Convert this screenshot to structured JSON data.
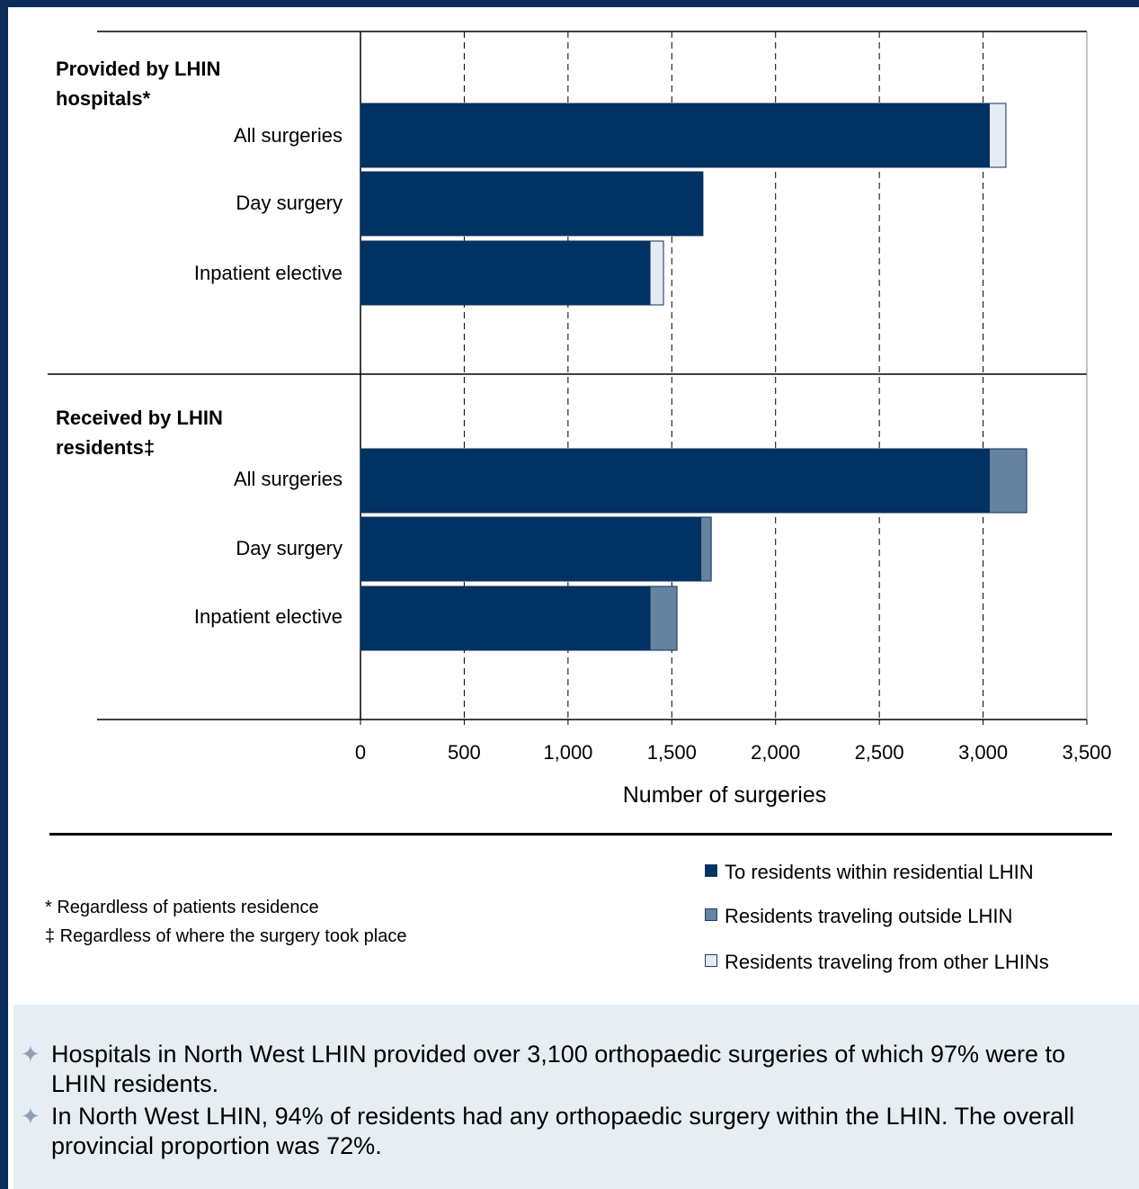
{
  "chart_data": {
    "type": "bar",
    "orientation": "horizontal",
    "stacked": true,
    "xlabel": "Number of surgeries",
    "xlim": [
      0,
      3500
    ],
    "xticks": [
      "0",
      "500",
      "1,000",
      "1,500",
      "2,000",
      "2,500",
      "3,000",
      "3,500"
    ],
    "grid": "vertical dashed",
    "groups": [
      {
        "label": "Provided by LHIN hospitals*",
        "categories": [
          "All surgeries",
          "Day surgery",
          "Inpatient elective"
        ],
        "series": [
          {
            "name": "To residents within residential LHIN",
            "values": [
              3030,
              1650,
              1395
            ]
          },
          {
            "name": "Residents traveling outside LHIN",
            "values": [
              0,
              0,
              0
            ]
          },
          {
            "name": "Residents traveling from other LHINs",
            "values": [
              80,
              0,
              65
            ]
          }
        ]
      },
      {
        "label": "Received by LHIN residents‡",
        "categories": [
          "All surgeries",
          "Day surgery",
          "Inpatient elective"
        ],
        "series": [
          {
            "name": "To residents within residential LHIN",
            "values": [
              3030,
              1640,
              1395
            ]
          },
          {
            "name": "Residents traveling outside LHIN",
            "values": [
              180,
              50,
              130
            ]
          },
          {
            "name": "Residents traveling from other LHINs",
            "values": [
              0,
              0,
              0
            ]
          }
        ]
      }
    ],
    "legend": {
      "placement": "bottom-right",
      "entries": [
        {
          "label": "To residents within residential LHIN",
          "color": "#003263"
        },
        {
          "label": "Residents traveling outside LHIN",
          "color": "#6582a0"
        },
        {
          "label": "Residents traveling from other LHINs",
          "color": "#e4ebf4"
        }
      ]
    }
  },
  "section_labels": {
    "provided_line1": "Provided by LHIN",
    "provided_line2": "hospitals*",
    "received_line1": "Received by LHIN",
    "received_line2": "residents‡"
  },
  "footnotes": [
    "* Regardless of patients residence",
    "‡ Regardless of where the surgery took place"
  ],
  "summary": [
    "Hospitals in North West LHIN provided over 3,100 orthopaedic surgeries of which 97% were to LHIN residents.",
    "In North West LHIN, 94% of residents had any orthopaedic surgery within the LHIN. The overall provincial proportion was 72%."
  ],
  "colors": {
    "frame": "#0b2d5a",
    "within": "#003263",
    "outside": "#6582a0",
    "from_other": "#e4ebf4",
    "summary_bg": "#e6eef3"
  }
}
